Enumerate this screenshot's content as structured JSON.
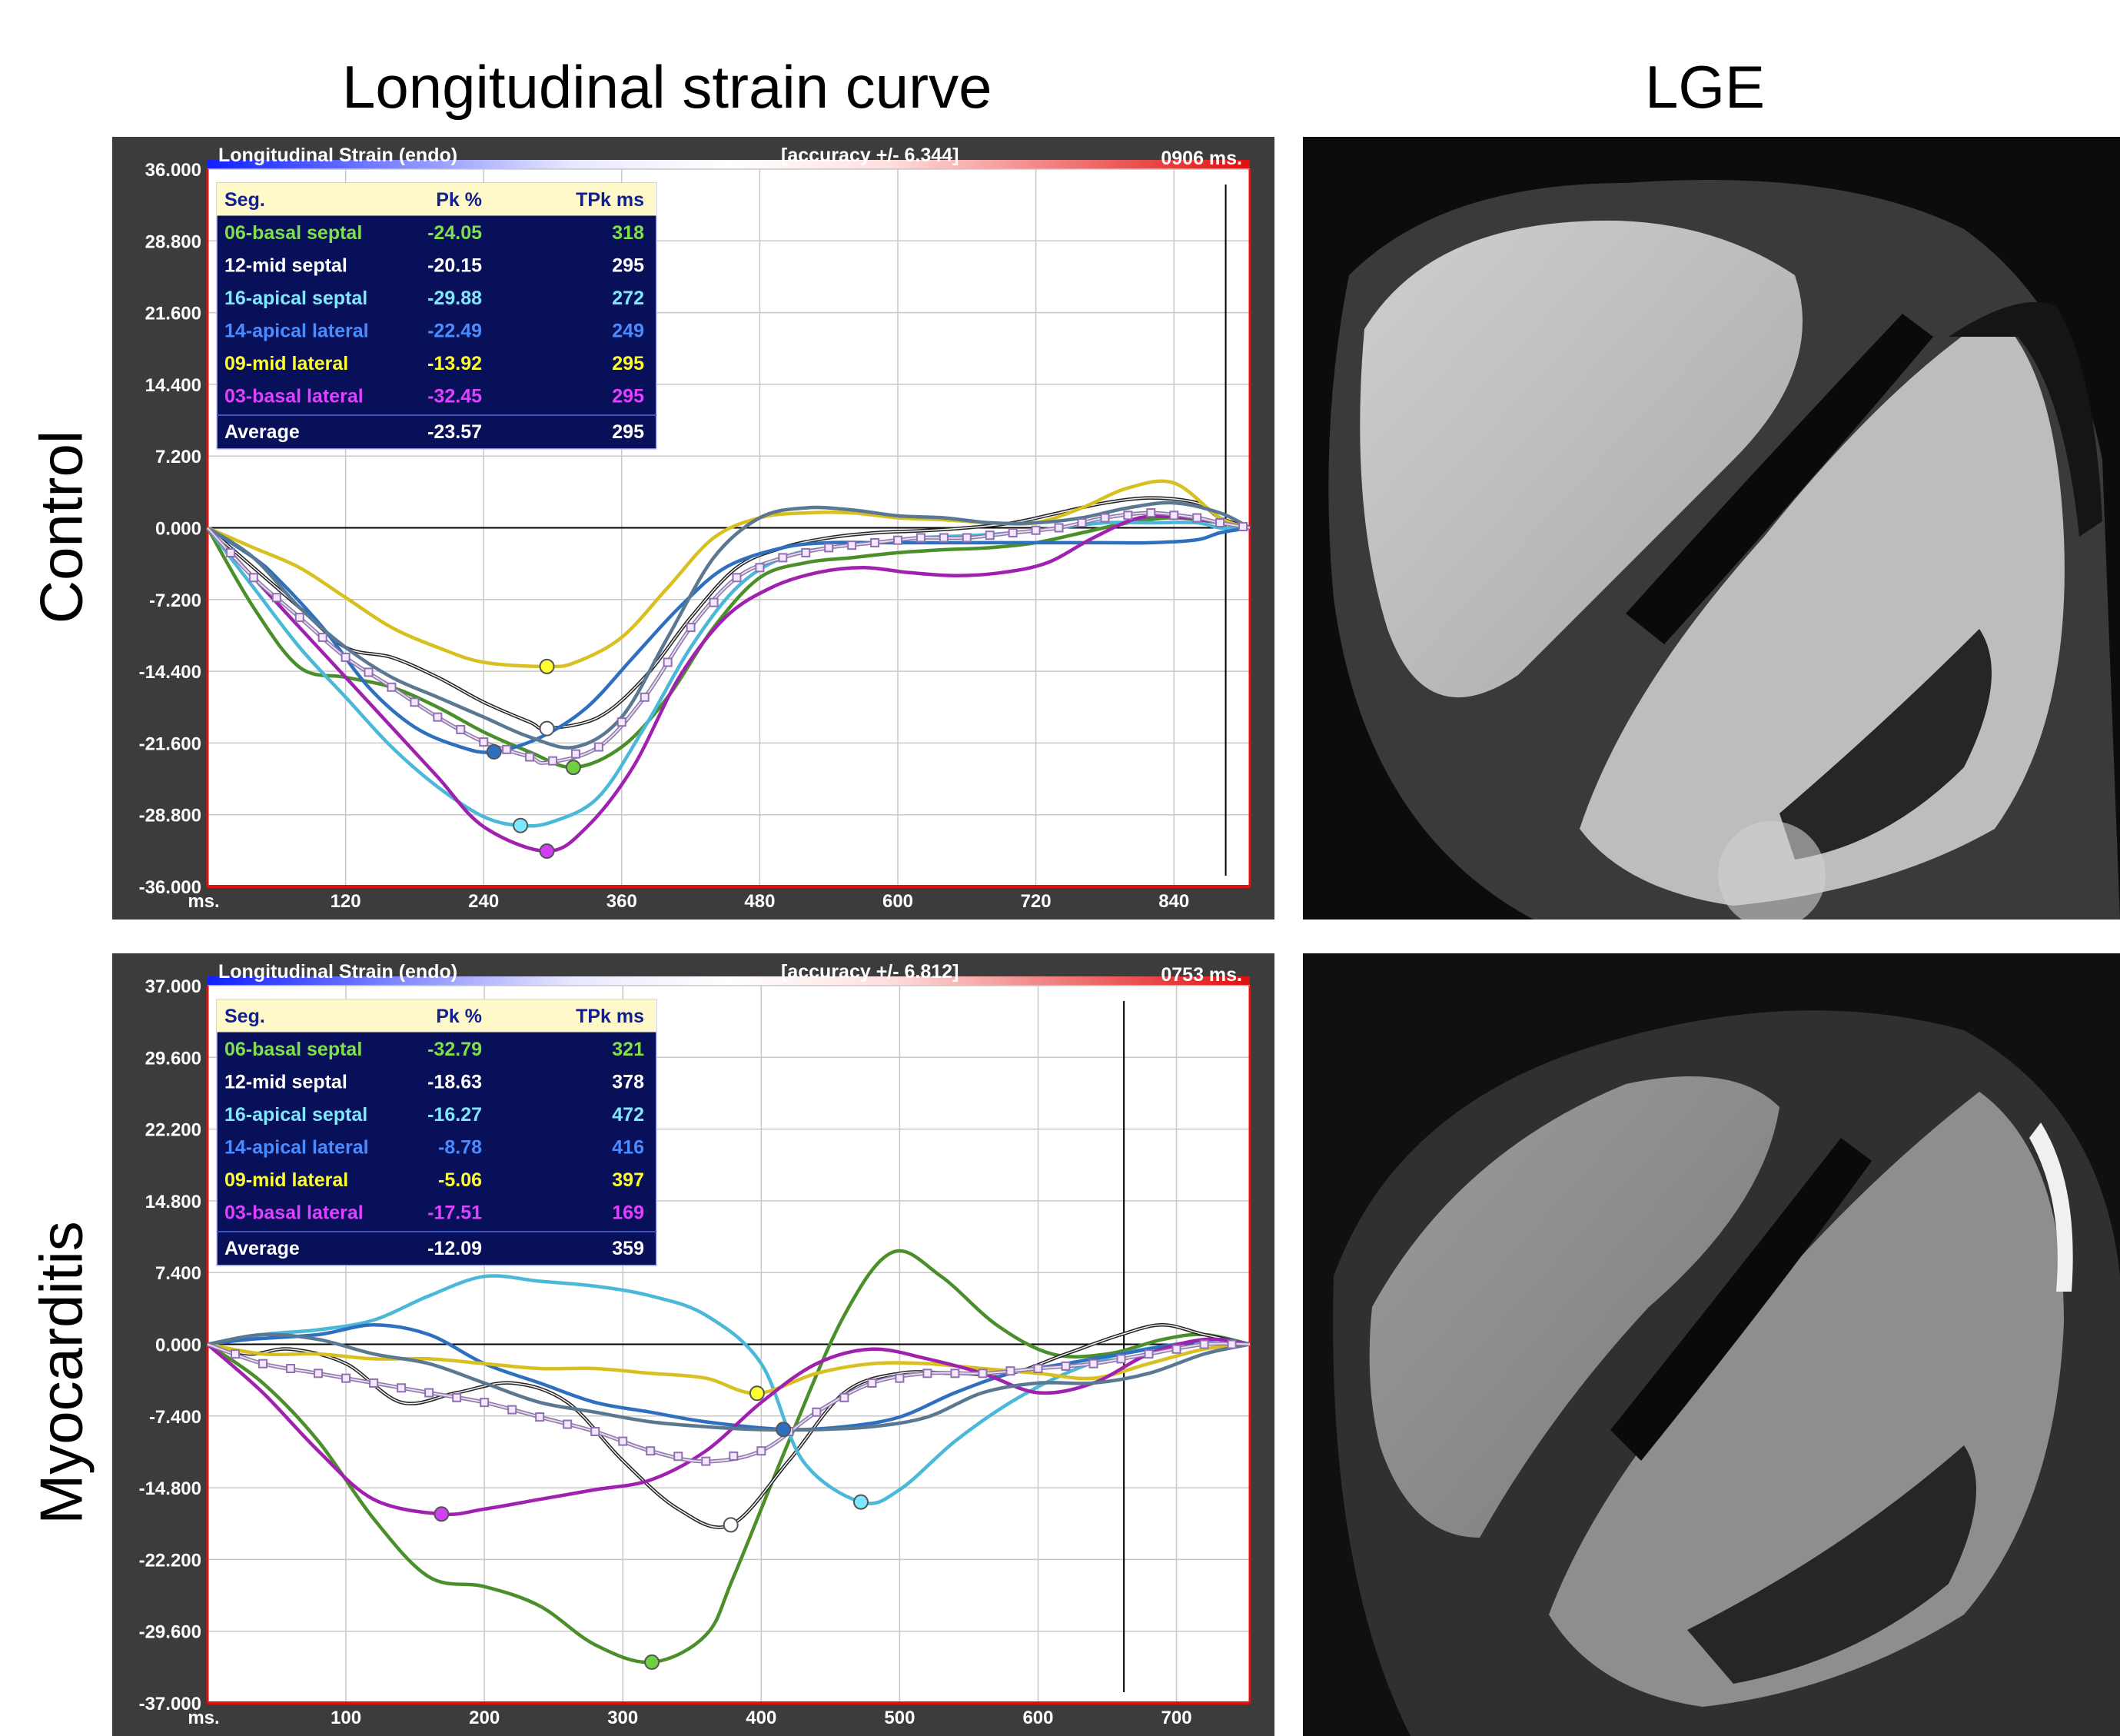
{
  "headings": {
    "left": "Longitudinal  strain curve",
    "right": "LGE"
  },
  "row_labels": [
    "Control",
    "Myocarditis"
  ],
  "seg_colors": {
    "06-basal septal": "#4a8f2a",
    "12-mid septal": "#222222",
    "16-apical septal": "#4ab8d8",
    "14-apical lateral": "#2f6fc0",
    "09-mid lateral": "#d8c020",
    "03-basal lateral": "#a020b0",
    "avg": "#c9a4d8",
    "extra": "#5a7892"
  },
  "chart_data": [
    {
      "type": "line",
      "panel": "Control",
      "title": "Longitudinal Strain (endo)",
      "accuracy": "[accuracy +/- 6.344]",
      "time": "0906 ms.",
      "xlabel": "ms.",
      "xticks": [
        "120",
        "240",
        "360",
        "480",
        "600",
        "720",
        "840"
      ],
      "xtick_values": [
        120,
        240,
        360,
        480,
        600,
        720,
        840
      ],
      "xlim": [
        0,
        906
      ],
      "yticks": [
        "36.000",
        "28.800",
        "21.600",
        "14.400",
        "7.200",
        "0.000",
        "-7.200",
        "-14.400",
        "-21.600",
        "-28.800",
        "-36.000"
      ],
      "ylim": [
        -36,
        36
      ],
      "cursor_x": 885,
      "table": {
        "headers": [
          "Seg.",
          "Pk %",
          "TPk ms"
        ],
        "rows": [
          {
            "seg": "06-basal septal",
            "pk": "-24.05",
            "tpk": "318",
            "color": "#7ee04a"
          },
          {
            "seg": "12-mid septal",
            "pk": "-20.15",
            "tpk": "295",
            "color": "#ffffff"
          },
          {
            "seg": "16-apical septal",
            "pk": "-29.88",
            "tpk": "272",
            "color": "#7ee8ff"
          },
          {
            "seg": "14-apical lateral",
            "pk": "-22.49",
            "tpk": "249",
            "color": "#4a8cff"
          },
          {
            "seg": "09-mid lateral",
            "pk": "-13.92",
            "tpk": "295",
            "color": "#ffff30"
          },
          {
            "seg": "03-basal lateral",
            "pk": "-32.45",
            "tpk": "295",
            "color": "#e040ff"
          }
        ],
        "average": {
          "seg": "Average",
          "pk": "-23.57",
          "tpk": "295"
        }
      },
      "series": [
        {
          "key": "06-basal septal",
          "x": [
            0,
            40,
            80,
            120,
            160,
            200,
            240,
            280,
            318,
            360,
            400,
            440,
            480,
            520,
            560,
            600,
            640,
            680,
            720,
            760,
            800,
            840,
            880,
            906
          ],
          "y": [
            0,
            -8,
            -14,
            -15,
            -16,
            -18,
            -20.5,
            -22.5,
            -24.05,
            -22,
            -17,
            -10,
            -5,
            -3.5,
            -3,
            -2.5,
            -2.2,
            -2,
            -1.5,
            -0.5,
            0.5,
            1,
            0.5,
            0
          ]
        },
        {
          "key": "12-mid septal",
          "x": [
            0,
            40,
            80,
            120,
            160,
            200,
            240,
            280,
            295,
            340,
            380,
            420,
            460,
            500,
            540,
            580,
            620,
            660,
            700,
            740,
            780,
            820,
            860,
            880,
            906
          ],
          "y": [
            0,
            -4,
            -8,
            -12,
            -13,
            -15,
            -17.5,
            -19.5,
            -20.15,
            -19,
            -15,
            -9,
            -4,
            -2,
            -1,
            -0.5,
            -0.3,
            0,
            0.5,
            1.5,
            2.5,
            3,
            2.5,
            1,
            0
          ]
        },
        {
          "key": "16-apical septal",
          "x": [
            0,
            40,
            80,
            120,
            160,
            200,
            240,
            272,
            300,
            340,
            380,
            420,
            460,
            500,
            540,
            580,
            620,
            660,
            700,
            740,
            780,
            820,
            860,
            880,
            906
          ],
          "y": [
            0,
            -6,
            -12,
            -17,
            -22,
            -26,
            -29,
            -29.88,
            -29.5,
            -27,
            -20,
            -12,
            -6,
            -3,
            -2,
            -1.5,
            -1,
            -0.8,
            -0.5,
            0,
            0.5,
            0.5,
            0.5,
            0,
            0
          ]
        },
        {
          "key": "14-apical lateral",
          "x": [
            0,
            40,
            60,
            100,
            140,
            180,
            220,
            249,
            290,
            330,
            370,
            410,
            450,
            500,
            540,
            580,
            620,
            660,
            700,
            740,
            780,
            820,
            860,
            880,
            906
          ],
          "y": [
            0,
            -3,
            -5,
            -10,
            -16,
            -20,
            -22,
            -22.49,
            -21,
            -18,
            -13,
            -8,
            -4,
            -2,
            -1.5,
            -1.5,
            -1.5,
            -1.5,
            -1.5,
            -1.5,
            -1.5,
            -1.5,
            -1.2,
            -0.5,
            0
          ]
        },
        {
          "key": "09-mid lateral",
          "x": [
            0,
            40,
            80,
            120,
            160,
            200,
            240,
            295,
            320,
            360,
            400,
            440,
            480,
            520,
            560,
            600,
            640,
            680,
            720,
            760,
            800,
            840,
            880,
            906
          ],
          "y": [
            0,
            -2,
            -4,
            -7,
            -10,
            -12,
            -13.5,
            -13.92,
            -13.5,
            -11,
            -6,
            -1,
            1,
            1.5,
            1.5,
            1,
            0.8,
            0.5,
            0.5,
            2,
            4,
            4.5,
            1,
            0
          ]
        },
        {
          "key": "03-basal lateral",
          "x": [
            0,
            40,
            80,
            120,
            160,
            200,
            240,
            295,
            330,
            370,
            410,
            450,
            490,
            530,
            570,
            610,
            650,
            690,
            730,
            770,
            810,
            850,
            880,
            906
          ],
          "y": [
            0,
            -5,
            -10,
            -15,
            -20,
            -25,
            -30,
            -32.45,
            -30,
            -24,
            -15,
            -9,
            -6,
            -4.5,
            -4,
            -4.5,
            -4.8,
            -4.5,
            -3.5,
            -1,
            1,
            1,
            0.5,
            0
          ]
        },
        {
          "key": "extra",
          "x": [
            0,
            40,
            80,
            120,
            160,
            200,
            240,
            280,
            320,
            360,
            400,
            440,
            480,
            520,
            560,
            600,
            640,
            680,
            720,
            760,
            800,
            840,
            880,
            906
          ],
          "y": [
            0,
            -3,
            -8,
            -12,
            -15,
            -17,
            -19,
            -21,
            -22,
            -19,
            -11,
            -3,
            1,
            2,
            1.8,
            1.2,
            1,
            0.5,
            0.5,
            1,
            2,
            2.5,
            1.5,
            0
          ]
        }
      ],
      "average_series": {
        "x": [
          0,
          40,
          80,
          120,
          160,
          200,
          240,
          280,
          295,
          340,
          380,
          420,
          460,
          500,
          540,
          580,
          620,
          660,
          700,
          740,
          780,
          820,
          860,
          880,
          906
        ],
        "y": [
          0,
          -5,
          -9,
          -13,
          -16,
          -19,
          -21.5,
          -23,
          -23.57,
          -22,
          -17,
          -10,
          -5,
          -3,
          -2,
          -1.5,
          -1,
          -1,
          -0.5,
          0,
          1,
          1.5,
          1,
          0.5,
          0
        ]
      },
      "peak_markers": [
        {
          "key": "09-mid lateral",
          "x": 295,
          "y": -13.92
        },
        {
          "key": "12-mid septal",
          "x": 295,
          "y": -20.15
        },
        {
          "key": "14-apical lateral",
          "x": 249,
          "y": -22.49
        },
        {
          "key": "06-basal septal",
          "x": 318,
          "y": -24.05
        },
        {
          "key": "16-apical septal",
          "x": 272,
          "y": -29.88
        },
        {
          "key": "03-basal lateral",
          "x": 295,
          "y": -32.45
        }
      ]
    },
    {
      "type": "line",
      "panel": "Myocarditis",
      "title": "Longitudinal Strain (endo)",
      "accuracy": "[accuracy +/- 6.812]",
      "time": "0753 ms.",
      "xlabel": "ms.",
      "xticks": [
        "100",
        "200",
        "300",
        "400",
        "500",
        "600",
        "700"
      ],
      "xtick_values": [
        100,
        200,
        300,
        400,
        500,
        600,
        700
      ],
      "xlim": [
        0,
        753
      ],
      "yticks": [
        "37.000",
        "29.600",
        "22.200",
        "14.800",
        "7.400",
        "0.000",
        "-7.400",
        "-14.800",
        "-22.200",
        "-29.600",
        "-37.000"
      ],
      "ylim": [
        -37,
        37
      ],
      "cursor_x": 662,
      "table": {
        "headers": [
          "Seg.",
          "Pk %",
          "TPk ms"
        ],
        "rows": [
          {
            "seg": "06-basal septal",
            "pk": "-32.79",
            "tpk": "321",
            "color": "#7ee04a"
          },
          {
            "seg": "12-mid septal",
            "pk": "-18.63",
            "tpk": "378",
            "color": "#ffffff"
          },
          {
            "seg": "16-apical septal",
            "pk": "-16.27",
            "tpk": "472",
            "color": "#7ee8ff"
          },
          {
            "seg": "14-apical lateral",
            "pk": "-8.78",
            "tpk": "416",
            "color": "#4a8cff"
          },
          {
            "seg": "09-mid lateral",
            "pk": "-5.06",
            "tpk": "397",
            "color": "#ffff30"
          },
          {
            "seg": "03-basal lateral",
            "pk": "-17.51",
            "tpk": "169",
            "color": "#e040ff"
          }
        ],
        "average": {
          "seg": "Average",
          "pk": "-12.09",
          "tpk": "359"
        }
      },
      "series": [
        {
          "key": "06-basal septal",
          "x": [
            0,
            40,
            80,
            120,
            160,
            200,
            240,
            280,
            321,
            360,
            380,
            420,
            460,
            495,
            530,
            570,
            610,
            650,
            690,
            720,
            753
          ],
          "y": [
            0,
            -4,
            -10,
            -18,
            -24,
            -25,
            -27,
            -31,
            -32.79,
            -30,
            -24,
            -10,
            3,
            9.5,
            7,
            2,
            -1,
            -1,
            0.5,
            1,
            0
          ]
        },
        {
          "key": "12-mid septal",
          "x": [
            0,
            30,
            60,
            100,
            140,
            180,
            220,
            260,
            300,
            340,
            378,
            420,
            460,
            500,
            540,
            580,
            620,
            660,
            690,
            720,
            753
          ],
          "y": [
            0,
            -1,
            -0.5,
            -2,
            -6,
            -5,
            -4,
            -6,
            -12,
            -17,
            -18.63,
            -12,
            -5,
            -3,
            -3,
            -3,
            -1,
            1,
            2,
            1,
            0
          ]
        },
        {
          "key": "16-apical septal",
          "x": [
            0,
            40,
            80,
            120,
            160,
            200,
            240,
            280,
            320,
            360,
            400,
            430,
            472,
            500,
            540,
            580,
            620,
            660,
            700,
            730,
            753
          ],
          "y": [
            0,
            1,
            1.5,
            2.5,
            5,
            7,
            6.5,
            6,
            5,
            3,
            -2,
            -12,
            -16.27,
            -15,
            -10,
            -6,
            -3,
            -1,
            0,
            0.5,
            0
          ]
        },
        {
          "key": "14-apical lateral",
          "x": [
            0,
            30,
            80,
            120,
            160,
            200,
            240,
            280,
            320,
            360,
            416,
            460,
            500,
            540,
            580,
            620,
            660,
            700,
            730,
            753
          ],
          "y": [
            0,
            0.5,
            1,
            2,
            1,
            -2,
            -4,
            -6,
            -7,
            -8,
            -8.78,
            -8.5,
            -7.5,
            -5,
            -3,
            -2,
            -1,
            0,
            0.5,
            0
          ]
        },
        {
          "key": "09-mid lateral",
          "x": [
            0,
            40,
            80,
            120,
            160,
            200,
            240,
            280,
            320,
            360,
            397,
            440,
            480,
            520,
            560,
            600,
            640,
            680,
            720,
            753
          ],
          "y": [
            0,
            -1,
            -1,
            -1.5,
            -1.5,
            -2,
            -2.5,
            -2.5,
            -3,
            -3.5,
            -5.06,
            -3,
            -2,
            -2,
            -2.5,
            -3,
            -3.5,
            -2,
            -0.5,
            0
          ]
        },
        {
          "key": "03-basal lateral",
          "x": [
            0,
            40,
            80,
            120,
            169,
            200,
            240,
            280,
            320,
            360,
            400,
            440,
            480,
            520,
            560,
            600,
            640,
            680,
            720,
            753
          ],
          "y": [
            0,
            -5,
            -11,
            -16,
            -17.51,
            -17,
            -16,
            -15,
            -14,
            -11,
            -6,
            -2,
            -0.5,
            -1.5,
            -3,
            -5,
            -4,
            -1,
            0.5,
            0
          ]
        },
        {
          "key": "extra",
          "x": [
            0,
            40,
            80,
            120,
            160,
            200,
            240,
            280,
            320,
            360,
            400,
            440,
            480,
            520,
            560,
            600,
            640,
            680,
            720,
            753
          ],
          "y": [
            0,
            1,
            0.5,
            -1,
            -2,
            -4,
            -6,
            -7,
            -8,
            -8.5,
            -8.8,
            -8.8,
            -8.5,
            -7.5,
            -5,
            -4,
            -4,
            -3,
            -1,
            0
          ]
        }
      ],
      "average_series": {
        "x": [
          0,
          40,
          80,
          120,
          160,
          200,
          240,
          280,
          320,
          359,
          400,
          440,
          480,
          520,
          560,
          600,
          640,
          680,
          720,
          753
        ],
        "y": [
          0,
          -2,
          -3,
          -4,
          -5,
          -6,
          -7.5,
          -9,
          -11,
          -12.09,
          -11,
          -7,
          -4,
          -3,
          -3,
          -2.5,
          -2,
          -1,
          0,
          0
        ]
      },
      "peak_markers": [
        {
          "key": "06-basal septal",
          "x": 321,
          "y": -32.79
        },
        {
          "key": "12-mid septal",
          "x": 378,
          "y": -18.63
        },
        {
          "key": "16-apical septal",
          "x": 472,
          "y": -16.27
        },
        {
          "key": "14-apical lateral",
          "x": 416,
          "y": -8.78
        },
        {
          "key": "09-mid lateral",
          "x": 397,
          "y": -5.06
        },
        {
          "key": "03-basal lateral",
          "x": 169,
          "y": -17.51
        }
      ]
    }
  ]
}
